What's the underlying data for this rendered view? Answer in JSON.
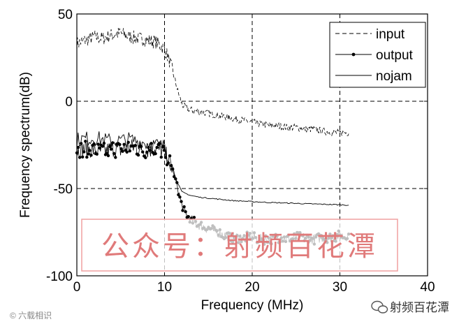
{
  "chart_data": {
    "type": "line",
    "xlabel": "Frequency (MHz)",
    "ylabel": "Frequency spectrum(dB)",
    "xlim": [
      0,
      40
    ],
    "ylim": [
      -100,
      50
    ],
    "xticks": [
      0,
      10,
      20,
      30,
      40
    ],
    "yticks": [
      50,
      0,
      -50,
      -100
    ],
    "xtick_labels": [
      "0",
      "10",
      "20",
      "30",
      "40"
    ],
    "ytick_labels": [
      "50",
      "0",
      "-50",
      "-100"
    ],
    "grid": true,
    "legend_position": "top-right",
    "series": [
      {
        "name": "input",
        "style": "dashed",
        "x": [
          0,
          1,
          2,
          3,
          4,
          5,
          6,
          7,
          8,
          9,
          10,
          10.5,
          11,
          11.5,
          12,
          12.5,
          13,
          14,
          15,
          16,
          17,
          18,
          19,
          20,
          21,
          22,
          23,
          24,
          25,
          26,
          27,
          28,
          29,
          30,
          31
        ],
        "y": [
          33,
          35,
          37,
          36,
          38,
          39,
          37,
          36,
          35,
          34,
          30,
          24,
          16,
          6,
          -2,
          -4,
          -5,
          -6,
          -7,
          -8,
          -9,
          -10,
          -11,
          -12,
          -13,
          -14,
          -14,
          -15,
          -15,
          -16,
          -16,
          -17,
          -18,
          -18,
          -18
        ]
      },
      {
        "name": "output",
        "style": "line-dot",
        "x": [
          0,
          1,
          2,
          3,
          4,
          5,
          6,
          7,
          8,
          9,
          10,
          10.5,
          11,
          11.5,
          12,
          12.5,
          13,
          14,
          15,
          16,
          17,
          18,
          19,
          20,
          21,
          22,
          23,
          24,
          25,
          26,
          27,
          28,
          29,
          30,
          31
        ],
        "y": [
          -28,
          -27,
          -28,
          -29,
          -27,
          -28,
          -26,
          -27,
          -28,
          -27,
          -29,
          -34,
          -40,
          -50,
          -60,
          -65,
          -68,
          -71,
          -73,
          -75,
          -77,
          -78,
          -78,
          -78,
          -79,
          -79,
          -78,
          -79,
          -78,
          -78,
          -79,
          -78,
          -78,
          -77,
          -77
        ]
      },
      {
        "name": "nojam",
        "style": "solid",
        "x": [
          0,
          2,
          4,
          6,
          8,
          10,
          10.5,
          11,
          11.5,
          12,
          12.5,
          13,
          14,
          15,
          16,
          17,
          18,
          19,
          20,
          22,
          24,
          26,
          28,
          30,
          31
        ],
        "y": [
          -22,
          -21,
          -23,
          -22,
          -24,
          -26,
          -32,
          -40,
          -47,
          -52,
          -53,
          -54,
          -55,
          -55.5,
          -56,
          -56.5,
          -57,
          -57.2,
          -57.5,
          -58,
          -58.3,
          -58.7,
          -59,
          -59.3,
          -59.5
        ]
      }
    ]
  },
  "watermark": {
    "text": "公众号：射频百花潭",
    "border_color": "#f0a0a0",
    "text_color": "#e07a7a"
  },
  "footer": {
    "left_label": "© 六载相识",
    "right_label": "射频百花潭"
  },
  "colors": {
    "line": "#000000",
    "grid": "#000000",
    "background": "#ffffff"
  }
}
